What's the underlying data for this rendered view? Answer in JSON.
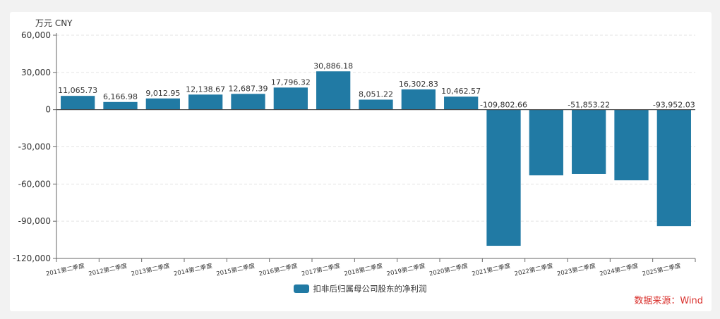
{
  "chart_data": {
    "type": "bar",
    "unit_label": "万元  CNY",
    "categories": [
      "2011第二季度",
      "2012第二季度",
      "2013第二季度",
      "2014第二季度",
      "2015第二季度",
      "2016第二季度",
      "2017第二季度",
      "2018第二季度",
      "2019第二季度",
      "2020第二季度",
      "2021第二季度",
      "2022第二季度",
      "2023第二季度",
      "2024第二季度",
      "2025第二季度"
    ],
    "series": [
      {
        "name": "扣非后归属母公司股东的净利润",
        "values": [
          11065.73,
          6166.98,
          9012.95,
          12138.67,
          12687.39,
          17796.32,
          30886.18,
          8051.22,
          16302.83,
          10462.57,
          -109802.66,
          -53000,
          -51853.22,
          -57000,
          -93952.03
        ],
        "labels": [
          "11,065.73",
          "6,166.98",
          "9,012.95",
          "12,138.67",
          "12,687.39",
          "17,796.32",
          "30,886.18",
          "8,051.22",
          "16,302.83",
          "10,462.57",
          "-109,802.66",
          "",
          "-51,853.22",
          "",
          "-93,952.03"
        ],
        "color": "#217aa4"
      }
    ],
    "ylim": [
      -120000,
      60000
    ],
    "yticks": [
      60000,
      30000,
      0,
      -30000,
      -60000,
      -90000,
      -120000
    ],
    "ytick_labels": [
      "60,000",
      "30,000",
      "0",
      "-30,000",
      "-60,000",
      "-90,000",
      "-120,000"
    ],
    "grid": true,
    "legend_position": "bottom-center"
  },
  "source_text": "数据来源：Wind"
}
